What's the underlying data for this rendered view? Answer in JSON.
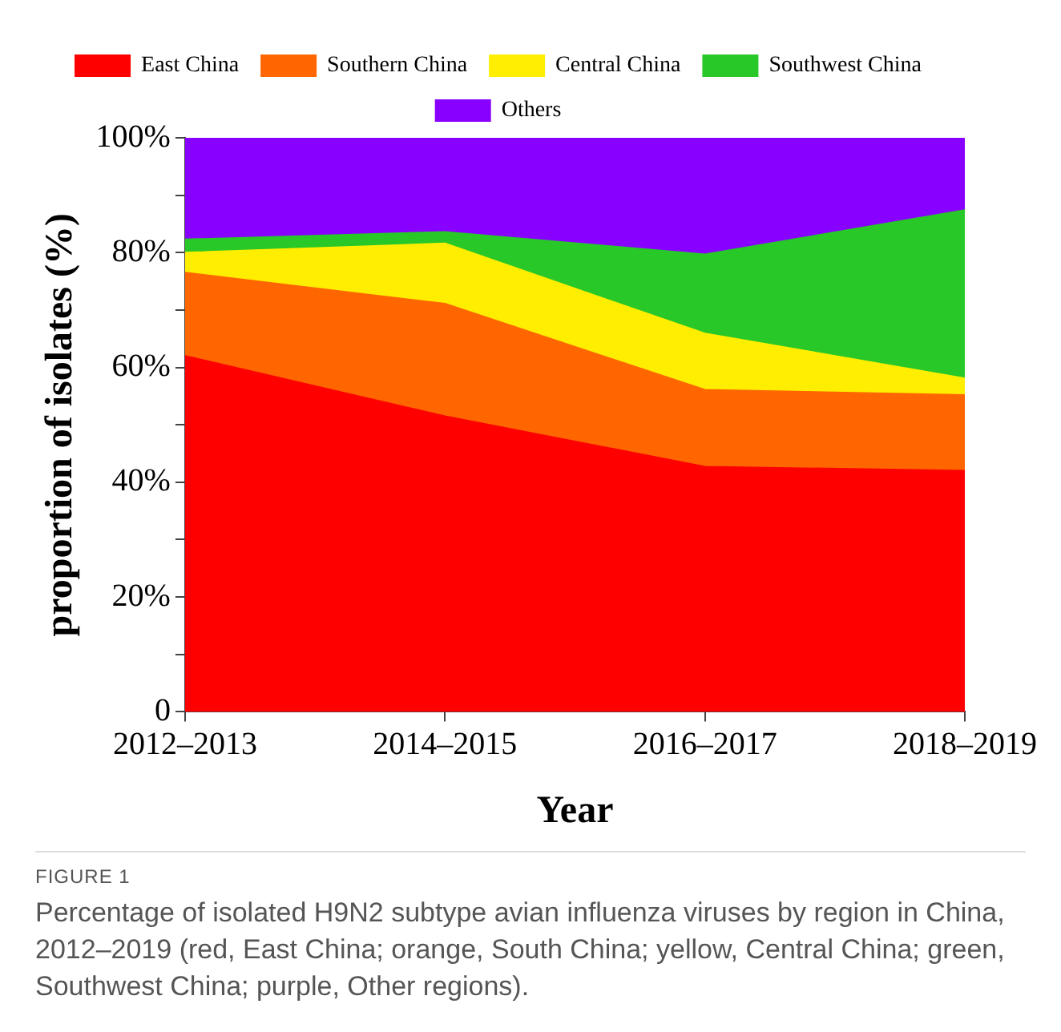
{
  "chart_data": {
    "type": "area",
    "stacked": true,
    "xlabel": "Year",
    "ylabel": "proportion of isolates (%)",
    "categories": [
      "2012–2013",
      "2014–2015",
      "2016–2017",
      "2018–2019"
    ],
    "series": [
      {
        "name": "East China",
        "color": "#ff0000",
        "values": [
          62,
          51.5,
          42.7,
          42
        ]
      },
      {
        "name": "Southern China",
        "color": "#ff6600",
        "values": [
          14.5,
          19.6,
          13.4,
          13.2
        ]
      },
      {
        "name": "Central China",
        "color": "#ffee00",
        "values": [
          3.5,
          10.5,
          9.8,
          2.9
        ]
      },
      {
        "name": "Southwest China",
        "color": "#28c828",
        "values": [
          2.3,
          2,
          13.8,
          29.3
        ]
      },
      {
        "name": "Others",
        "color": "#8800ff",
        "values": [
          17.7,
          16.4,
          20.3,
          12.6
        ]
      }
    ],
    "ylim": [
      0,
      100
    ],
    "yticks": [
      {
        "value": 0,
        "label": "0"
      },
      {
        "value": 10,
        "label": null
      },
      {
        "value": 20,
        "label": "20%"
      },
      {
        "value": 30,
        "label": null
      },
      {
        "value": 40,
        "label": "40%"
      },
      {
        "value": 50,
        "label": null
      },
      {
        "value": 60,
        "label": "60%"
      },
      {
        "value": 70,
        "label": null
      },
      {
        "value": 80,
        "label": "80%"
      },
      {
        "value": 90,
        "label": null
      },
      {
        "value": 100,
        "label": "100%"
      }
    ],
    "grid": false,
    "legend": "top",
    "annotations": [
      "FIGURE 1",
      "Percentage of isolated H9N2 subtype avian influenza viruses by region in China, 2012–2019 (red, East China; orange, South China; yellow, Central China; green, Southwest China; purple, Other regions)."
    ]
  }
}
